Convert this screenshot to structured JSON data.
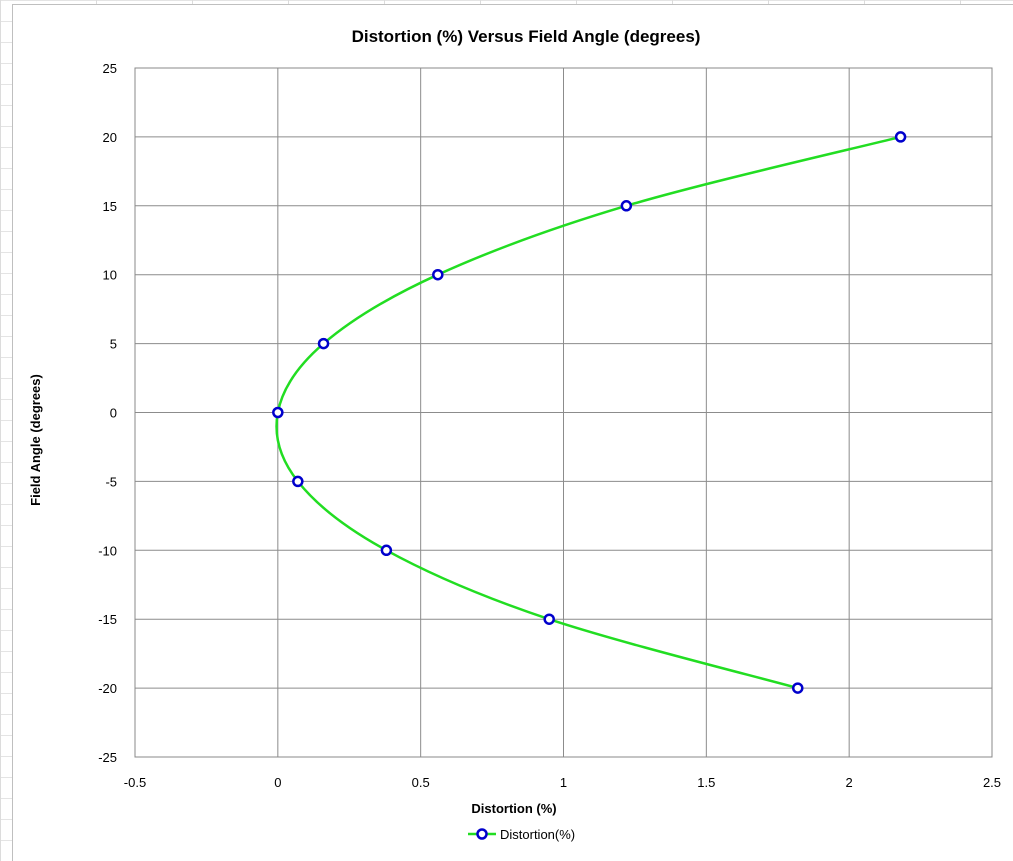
{
  "chart_data": {
    "type": "scatter",
    "title": "Distortion (%) Versus Field Angle (degrees)",
    "xlabel": "Distortion (%)",
    "ylabel": "Field Angle (degrees)",
    "xlim": [
      -0.5,
      2.5
    ],
    "ylim": [
      -25,
      25
    ],
    "x_ticks": [
      "-0.5",
      "0",
      "0.5",
      "1",
      "1.5",
      "2",
      "2.5"
    ],
    "y_ticks": [
      "25",
      "20",
      "15",
      "10",
      "5",
      "0",
      "-5",
      "-10",
      "-15",
      "-20",
      "-25"
    ],
    "x_tick_values": [
      -0.5,
      0,
      0.5,
      1,
      1.5,
      2,
      2.5
    ],
    "y_tick_values": [
      25,
      20,
      15,
      10,
      5,
      0,
      -5,
      -10,
      -15,
      -20,
      -25
    ],
    "grid": true,
    "legend_position": "bottom",
    "series": [
      {
        "name": "Distortion(%)",
        "line_color": "#22dd22",
        "marker_color": "#0000cc",
        "smooth": true,
        "x": [
          2.18,
          1.22,
          0.56,
          0.16,
          0.0,
          0.07,
          0.38,
          0.95,
          1.82
        ],
        "y": [
          20,
          15,
          10,
          5,
          0,
          -5,
          -10,
          -15,
          -20
        ]
      }
    ]
  }
}
